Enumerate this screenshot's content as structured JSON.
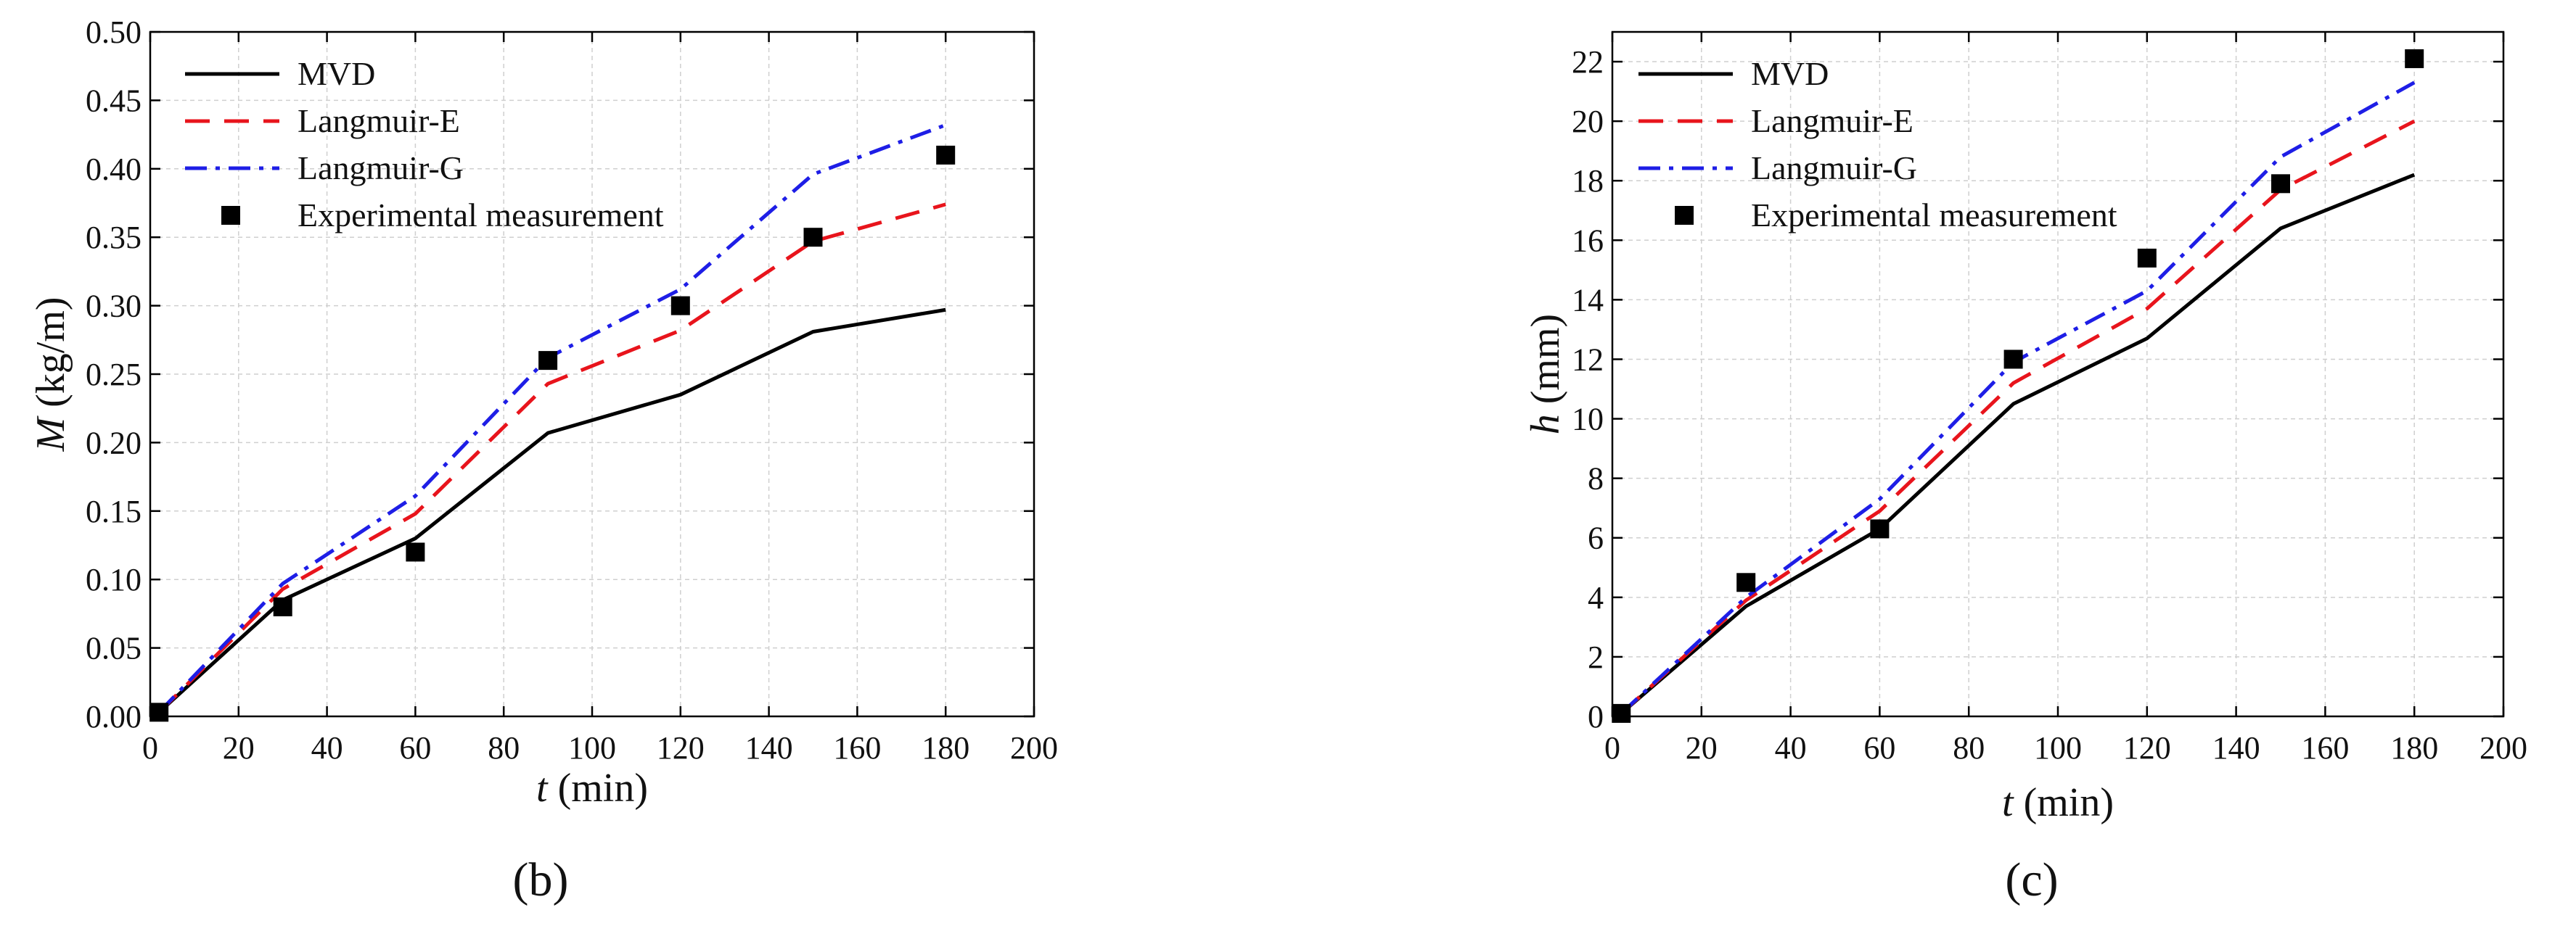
{
  "chart_data": [
    {
      "type": "line",
      "panel_label": "(b)",
      "xlabel_symbol": "t",
      "xlabel_unit": " (min)",
      "ylabel_symbol": "M",
      "ylabel_unit": " (kg/m)",
      "xlim": [
        0,
        200
      ],
      "ylim": [
        0,
        0.5
      ],
      "xticks": [
        0,
        20,
        40,
        60,
        80,
        100,
        120,
        140,
        160,
        180,
        200
      ],
      "yticks": [
        0.0,
        0.05,
        0.1,
        0.15,
        0.2,
        0.25,
        0.3,
        0.35,
        0.4,
        0.45,
        0.5
      ],
      "xtick_labels": [
        "0",
        "20",
        "40",
        "60",
        "80",
        "100",
        "120",
        "140",
        "160",
        "180",
        "200"
      ],
      "ytick_labels": [
        "0.00",
        "0.05",
        "0.10",
        "0.15",
        "0.20",
        "0.25",
        "0.30",
        "0.35",
        "0.40",
        "0.45",
        "0.50"
      ],
      "grid": true,
      "legend_position": "top-left",
      "series": [
        {
          "name": "MVD",
          "style": "solid",
          "color": "#000000",
          "x": [
            2,
            30,
            60,
            90,
            120,
            150,
            180
          ],
          "y": [
            0.003,
            0.085,
            0.13,
            0.207,
            0.235,
            0.281,
            0.297
          ]
        },
        {
          "name": "Langmuir-E",
          "style": "dashed",
          "color": "#e8141c",
          "x": [
            2,
            30,
            60,
            90,
            120,
            150,
            180
          ],
          "y": [
            0.003,
            0.093,
            0.148,
            0.243,
            0.282,
            0.347,
            0.374
          ]
        },
        {
          "name": "Langmuir-G",
          "style": "dashdot",
          "color": "#1e1ee6",
          "x": [
            2,
            30,
            60,
            90,
            120,
            150,
            180
          ],
          "y": [
            0.003,
            0.097,
            0.161,
            0.262,
            0.312,
            0.396,
            0.432
          ]
        },
        {
          "name": "Experimental measurement",
          "style": "marker",
          "color": "#000000",
          "x": [
            2,
            30,
            60,
            90,
            120,
            150,
            180
          ],
          "y": [
            0.003,
            0.08,
            0.12,
            0.26,
            0.3,
            0.35,
            0.41
          ]
        }
      ]
    },
    {
      "type": "line",
      "panel_label": "(c)",
      "xlabel_symbol": "t",
      "xlabel_unit": " (min)",
      "ylabel_symbol": "h",
      "ylabel_unit": " (mm)",
      "xlim": [
        0,
        200
      ],
      "ylim": [
        0,
        23
      ],
      "xticks": [
        0,
        20,
        40,
        60,
        80,
        100,
        120,
        140,
        160,
        180,
        200
      ],
      "yticks": [
        0,
        2,
        4,
        6,
        8,
        10,
        12,
        14,
        16,
        18,
        20,
        22
      ],
      "xtick_labels": [
        "0",
        "20",
        "40",
        "60",
        "80",
        "100",
        "120",
        "140",
        "160",
        "180",
        "200"
      ],
      "ytick_labels": [
        "0",
        "2",
        "4",
        "6",
        "8",
        "10",
        "12",
        "14",
        "16",
        "18",
        "20",
        "22"
      ],
      "grid": true,
      "legend_position": "top-left",
      "series": [
        {
          "name": "MVD",
          "style": "solid",
          "color": "#000000",
          "x": [
            2,
            30,
            60,
            90,
            120,
            150,
            180
          ],
          "y": [
            0.1,
            3.7,
            6.3,
            10.5,
            12.7,
            16.4,
            18.2
          ]
        },
        {
          "name": "Langmuir-E",
          "style": "dashed",
          "color": "#e8141c",
          "x": [
            2,
            30,
            60,
            90,
            120,
            150,
            180
          ],
          "y": [
            0.1,
            3.9,
            6.9,
            11.2,
            13.7,
            17.7,
            20.0
          ]
        },
        {
          "name": "Langmuir-G",
          "style": "dashdot",
          "color": "#1e1ee6",
          "x": [
            2,
            30,
            60,
            90,
            120,
            150,
            180
          ],
          "y": [
            0.1,
            4.0,
            7.3,
            11.9,
            14.3,
            18.8,
            21.3
          ]
        },
        {
          "name": "Experimental measurement",
          "style": "marker",
          "color": "#000000",
          "x": [
            2,
            30,
            60,
            90,
            120,
            150,
            180
          ],
          "y": [
            0.1,
            4.5,
            6.3,
            12.0,
            15.4,
            17.9,
            22.1
          ]
        }
      ]
    }
  ]
}
